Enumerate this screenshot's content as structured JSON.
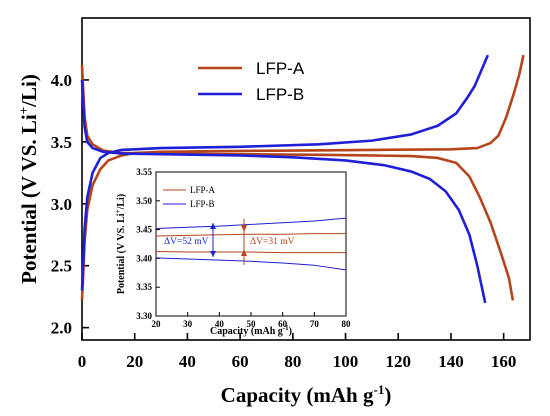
{
  "chart_data": [
    {
      "type": "line",
      "xlabel": "Capacity (mAh g",
      "xlabel_sup": "-1",
      "xlabel_end": ")",
      "ylabel": "Potential (V VS. Li",
      "ylabel_sup": "+",
      "ylabel_end": "/Li)",
      "xlim": [
        0,
        170
      ],
      "ylim": [
        1.9,
        4.5
      ],
      "xticks": [
        "0",
        "20",
        "40",
        "60",
        "80",
        "100",
        "120",
        "140",
        "160"
      ],
      "yticks": [
        "2.0",
        "2.5",
        "3.0",
        "3.5",
        "4.0"
      ],
      "legend_position": "top-center",
      "series": [
        {
          "name": "LFP-A",
          "color": "#b5451b",
          "charge": [
            [
              0,
              2.22
            ],
            [
              0.5,
              2.45
            ],
            [
              1,
              2.7
            ],
            [
              2,
              2.95
            ],
            [
              4,
              3.15
            ],
            [
              7,
              3.28
            ],
            [
              10,
              3.35
            ],
            [
              15,
              3.39
            ],
            [
              20,
              3.41
            ],
            [
              30,
              3.42
            ],
            [
              50,
              3.425
            ],
            [
              80,
              3.43
            ],
            [
              110,
              3.435
            ],
            [
              140,
              3.44
            ],
            [
              150,
              3.45
            ],
            [
              155,
              3.49
            ],
            [
              158,
              3.55
            ],
            [
              161,
              3.7
            ],
            [
              164,
              3.9
            ],
            [
              166,
              4.05
            ],
            [
              167.5,
              4.2
            ]
          ],
          "discharge": [
            [
              0,
              4.12
            ],
            [
              0.5,
              3.9
            ],
            [
              1,
              3.7
            ],
            [
              2,
              3.55
            ],
            [
              4,
              3.48
            ],
            [
              8,
              3.43
            ],
            [
              15,
              3.41
            ],
            [
              30,
              3.405
            ],
            [
              60,
              3.4
            ],
            [
              90,
              3.395
            ],
            [
              110,
              3.39
            ],
            [
              125,
              3.385
            ],
            [
              135,
              3.37
            ],
            [
              142,
              3.33
            ],
            [
              147,
              3.22
            ],
            [
              151,
              3.05
            ],
            [
              155,
              2.85
            ],
            [
              159,
              2.6
            ],
            [
              162,
              2.4
            ],
            [
              163.5,
              2.22
            ]
          ]
        },
        {
          "name": "LFP-B",
          "color": "#1f1fd6",
          "charge": [
            [
              0,
              2.3
            ],
            [
              0.5,
              2.55
            ],
            [
              1,
              2.8
            ],
            [
              2,
              3.05
            ],
            [
              4,
              3.25
            ],
            [
              7,
              3.37
            ],
            [
              10,
              3.41
            ],
            [
              15,
              3.435
            ],
            [
              30,
              3.45
            ],
            [
              60,
              3.46
            ],
            [
              90,
              3.48
            ],
            [
              110,
              3.51
            ],
            [
              125,
              3.56
            ],
            [
              135,
              3.63
            ],
            [
              142,
              3.73
            ],
            [
              146,
              3.85
            ],
            [
              149,
              3.95
            ],
            [
              151,
              4.05
            ],
            [
              153,
              4.15
            ],
            [
              154,
              4.2
            ]
          ],
          "discharge": [
            [
              0,
              4.0
            ],
            [
              0.5,
              3.8
            ],
            [
              1,
              3.62
            ],
            [
              2,
              3.5
            ],
            [
              4,
              3.45
            ],
            [
              8,
              3.42
            ],
            [
              15,
              3.405
            ],
            [
              30,
              3.4
            ],
            [
              60,
              3.39
            ],
            [
              80,
              3.375
            ],
            [
              100,
              3.35
            ],
            [
              115,
              3.31
            ],
            [
              125,
              3.26
            ],
            [
              132,
              3.2
            ],
            [
              138,
              3.1
            ],
            [
              143,
              2.95
            ],
            [
              147,
              2.75
            ],
            [
              150,
              2.5
            ],
            [
              152,
              2.3
            ],
            [
              153,
              2.2
            ]
          ]
        }
      ]
    },
    {
      "type": "line",
      "role": "inset",
      "xlabel": "Capacity (mAh g",
      "xlabel_sup": "-1",
      "xlabel_end": ")",
      "ylabel": "Potential (V VS. Li",
      "ylabel_sup": "+",
      "ylabel_end": "/Li)",
      "xlim": [
        20,
        80
      ],
      "ylim": [
        3.3,
        3.55
      ],
      "xticks": [
        "20",
        "30",
        "40",
        "50",
        "60",
        "70",
        "80"
      ],
      "yticks": [
        "3.30",
        "3.35",
        "3.40",
        "3.45",
        "3.50",
        "3.55"
      ],
      "legend_position": "top-left",
      "series": [
        {
          "name": "LFP-A",
          "color": "#b5451b",
          "charge": [
            [
              20,
              3.439
            ],
            [
              30,
              3.44
            ],
            [
              40,
              3.441
            ],
            [
              50,
              3.442
            ],
            [
              60,
              3.442
            ],
            [
              70,
              3.443
            ],
            [
              80,
              3.443
            ]
          ],
          "discharge": [
            [
              20,
              3.412
            ],
            [
              30,
              3.411
            ],
            [
              40,
              3.411
            ],
            [
              50,
              3.411
            ],
            [
              60,
              3.41
            ],
            [
              70,
              3.41
            ],
            [
              80,
              3.41
            ]
          ]
        },
        {
          "name": "LFP-B",
          "color": "#1f1fd6",
          "charge": [
            [
              20,
              3.452
            ],
            [
              30,
              3.454
            ],
            [
              40,
              3.456
            ],
            [
              50,
              3.459
            ],
            [
              60,
              3.462
            ],
            [
              70,
              3.465
            ],
            [
              80,
              3.47
            ]
          ],
          "discharge": [
            [
              20,
              3.401
            ],
            [
              30,
              3.399
            ],
            [
              40,
              3.397
            ],
            [
              50,
              3.395
            ],
            [
              60,
              3.392
            ],
            [
              70,
              3.388
            ],
            [
              80,
              3.38
            ]
          ]
        }
      ],
      "annotations": [
        {
          "text": "ΔV=52 mV",
          "color": "#1f1fd6"
        },
        {
          "text": "ΔV=31 mV",
          "color": "#b5451b"
        }
      ]
    }
  ]
}
